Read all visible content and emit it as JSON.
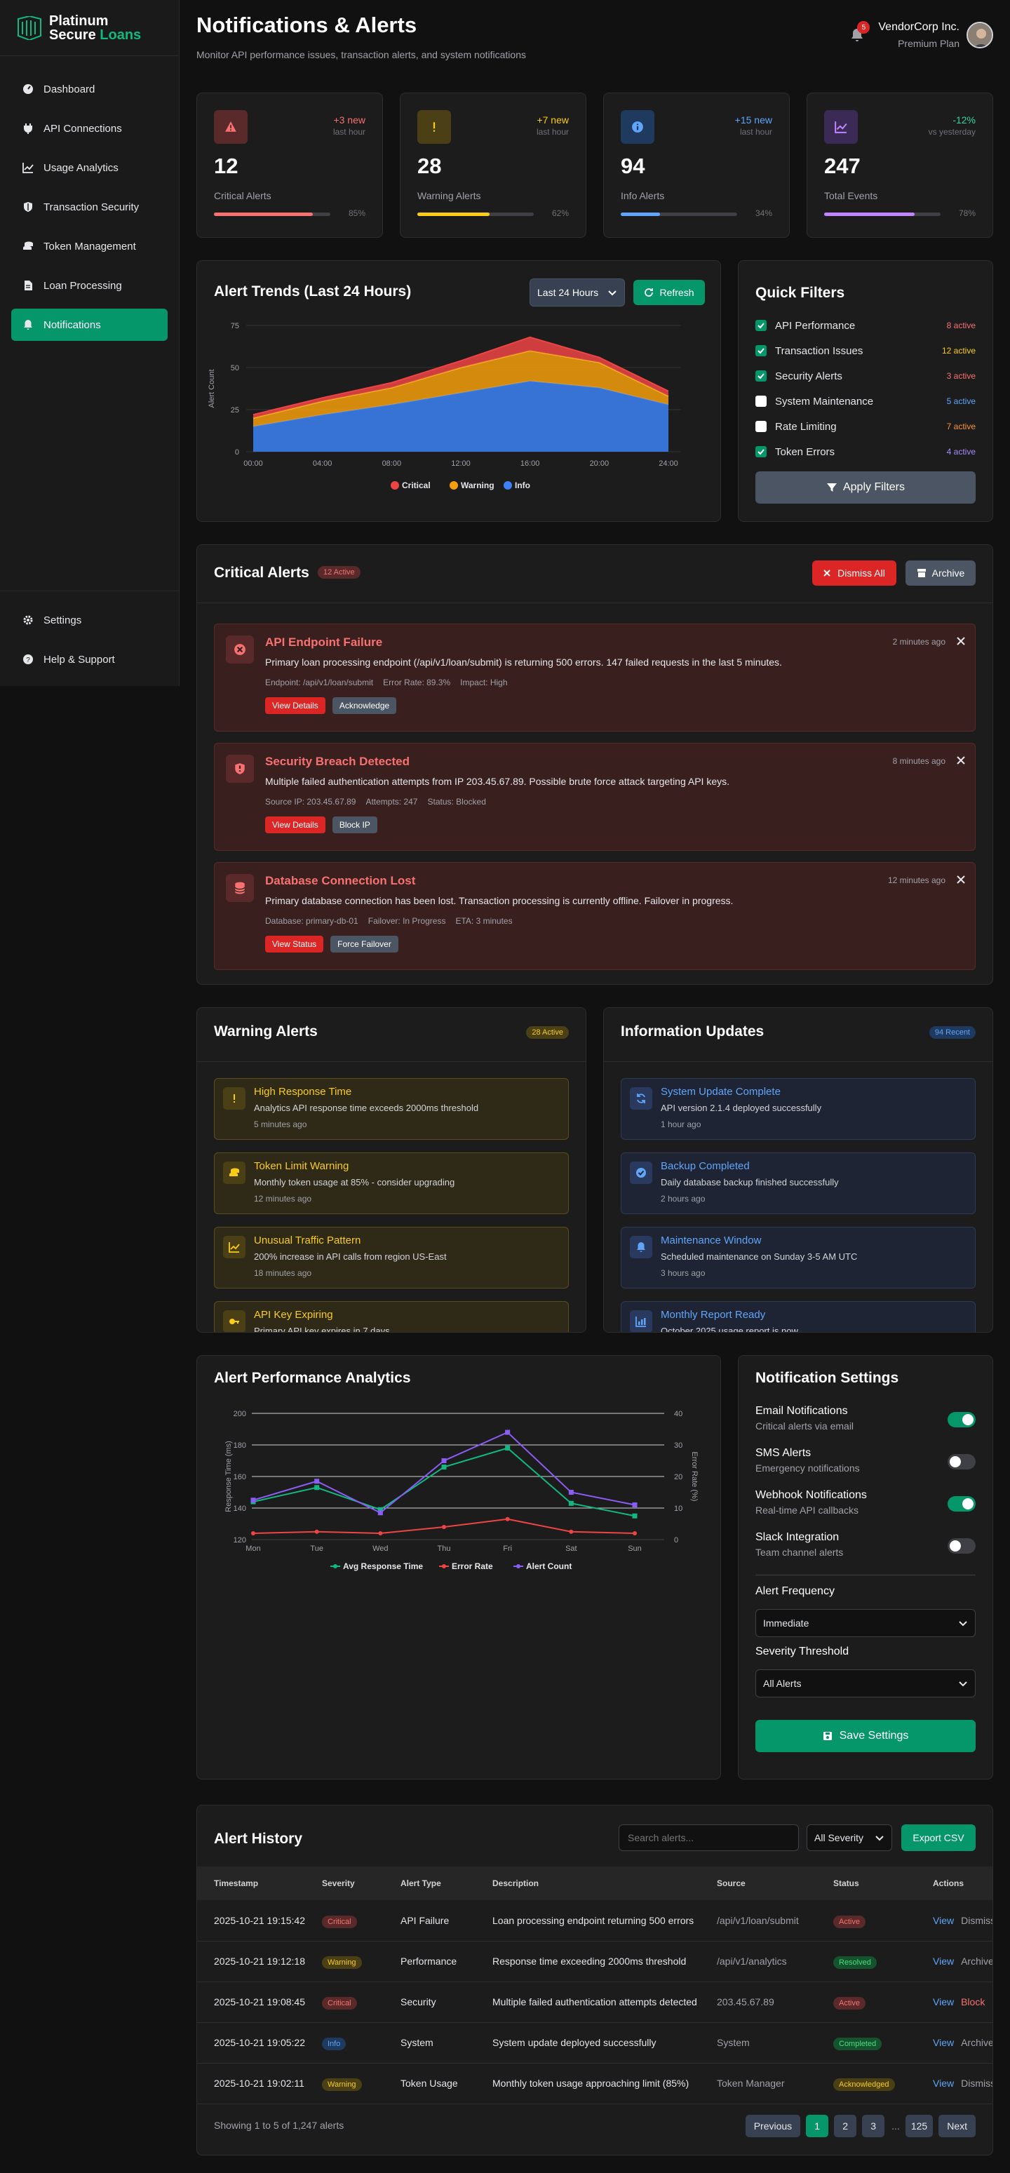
{
  "brand": {
    "line1": "Platinum",
    "line2a": "Secure",
    "line2b": "Loans"
  },
  "sidebar": {
    "items": [
      {
        "label": "Dashboard",
        "icon": "gauge-icon"
      },
      {
        "label": "API Connections",
        "icon": "plug-icon"
      },
      {
        "label": "Usage Analytics",
        "icon": "chart-line-icon"
      },
      {
        "label": "Transaction Security",
        "icon": "shield-icon"
      },
      {
        "label": "Token Management",
        "icon": "coins-icon"
      },
      {
        "label": "Loan Processing",
        "icon": "file-icon"
      },
      {
        "label": "Notifications",
        "icon": "bell-icon",
        "active": true
      }
    ],
    "bottom": [
      {
        "label": "Settings",
        "icon": "gear-icon"
      },
      {
        "label": "Help & Support",
        "icon": "question-icon"
      }
    ]
  },
  "header": {
    "title": "Notifications & Alerts",
    "subtitle": "Monitor API performance issues, transaction alerts, and system notifications",
    "bell_count": "5",
    "company": "VendorCorp Inc.",
    "plan": "Premium Plan"
  },
  "stats": [
    {
      "delta": "+3 new",
      "when": "last hour",
      "value": "12",
      "label": "Critical Alerts",
      "pct": "85%",
      "fraction": 0.85,
      "color": "#f87171",
      "icon_bg": "#5a2a2a",
      "bar": "#f87171"
    },
    {
      "delta": "+7 new",
      "when": "last hour",
      "value": "28",
      "label": "Warning Alerts",
      "pct": "62%",
      "fraction": 0.62,
      "color": "#facc15",
      "icon_bg": "#4a3f15",
      "bar": "#facc15"
    },
    {
      "delta": "+15 new",
      "when": "last hour",
      "value": "94",
      "label": "Info Alerts",
      "pct": "34%",
      "fraction": 0.34,
      "color": "#60a5fa",
      "icon_bg": "#1e3a5f",
      "bar": "#60a5fa"
    },
    {
      "delta": "-12%",
      "when": "vs yesterday",
      "value": "247",
      "label": "Total Events",
      "pct": "78%",
      "fraction": 0.78,
      "color": "#34d399",
      "icon_bg": "#3b2a55",
      "bar": "#c084fc"
    }
  ],
  "trends": {
    "title": "Alert Trends (Last 24 Hours)",
    "range": "Last 24 Hours",
    "refresh": "Refresh"
  },
  "quick_filters": {
    "title": "Quick Filters",
    "items": [
      {
        "label": "API Performance",
        "count": "8 active",
        "checked": true,
        "color": "#f87171"
      },
      {
        "label": "Transaction Issues",
        "count": "12 active",
        "checked": true,
        "color": "#facc15"
      },
      {
        "label": "Security Alerts",
        "count": "3 active",
        "checked": true,
        "color": "#f87171"
      },
      {
        "label": "System Maintenance",
        "count": "5 active",
        "checked": false,
        "color": "#60a5fa"
      },
      {
        "label": "Rate Limiting",
        "count": "7 active",
        "checked": false,
        "color": "#fb923c"
      },
      {
        "label": "Token Errors",
        "count": "4 active",
        "checked": true,
        "color": "#a78bfa"
      }
    ],
    "apply": "Apply Filters"
  },
  "critical": {
    "title": "Critical Alerts",
    "badge": "12 Active",
    "dismiss_all": "Dismiss All",
    "archive": "Archive",
    "items": [
      {
        "title": "API Endpoint Failure",
        "time": "2 minutes ago",
        "desc": "Primary loan processing endpoint (/api/v1/loan/submit) is returning 500 errors. 147 failed requests in the last 5 minutes.",
        "meta": [
          "Endpoint: /api/v1/loan/submit",
          "Error Rate: 89.3%",
          "Impact: High"
        ],
        "primary": "View Details",
        "secondary": "Acknowledge",
        "icon": "x-circle-icon"
      },
      {
        "title": "Security Breach Detected",
        "time": "8 minutes ago",
        "desc": "Multiple failed authentication attempts from IP 203.45.67.89. Possible brute force attack targeting API keys.",
        "meta": [
          "Source IP: 203.45.67.89",
          "Attempts: 247",
          "Status: Blocked"
        ],
        "primary": "View Details",
        "secondary": "Block IP",
        "icon": "shield-alert-icon"
      },
      {
        "title": "Database Connection Lost",
        "time": "12 minutes ago",
        "desc": "Primary database connection has been lost. Transaction processing is currently offline. Failover in progress.",
        "meta": [
          "Database: primary-db-01",
          "Failover: In Progress",
          "ETA: 3 minutes"
        ],
        "primary": "View Status",
        "secondary": "Force Failover",
        "icon": "database-icon"
      }
    ]
  },
  "warning": {
    "title": "Warning Alerts",
    "badge": "28 Active",
    "items": [
      {
        "title": "High Response Time",
        "desc": "Analytics API response time exceeds 2000ms threshold",
        "time": "5 minutes ago",
        "icon": "exclamation-icon"
      },
      {
        "title": "Token Limit Warning",
        "desc": "Monthly token usage at 85% - consider upgrading",
        "time": "12 minutes ago",
        "icon": "coins-icon"
      },
      {
        "title": "Unusual Traffic Pattern",
        "desc": "200% increase in API calls from region US-East",
        "time": "18 minutes ago",
        "icon": "chart-line-icon"
      },
      {
        "title": "API Key Expiring",
        "desc": "Primary API key expires in 7 days",
        "time": "",
        "icon": "key-icon"
      }
    ]
  },
  "info": {
    "title": "Information Updates",
    "badge": "94 Recent",
    "items": [
      {
        "title": "System Update Complete",
        "desc": "API version 2.1.4 deployed successfully",
        "time": "1 hour ago",
        "icon": "sync-icon"
      },
      {
        "title": "Backup Completed",
        "desc": "Daily database backup finished successfully",
        "time": "2 hours ago",
        "icon": "check-circle-icon"
      },
      {
        "title": "Maintenance Window",
        "desc": "Scheduled maintenance on Sunday 3-5 AM UTC",
        "time": "3 hours ago",
        "icon": "bell-icon"
      },
      {
        "title": "Monthly Report Ready",
        "desc": "October 2025 usage report is now",
        "time": "",
        "icon": "chart-bar-icon"
      }
    ]
  },
  "analytics": {
    "title": "Alert Performance Analytics"
  },
  "settings": {
    "title": "Notification Settings",
    "toggles": [
      {
        "name": "Email Notifications",
        "desc": "Critical alerts via email",
        "on": true
      },
      {
        "name": "SMS Alerts",
        "desc": "Emergency notifications",
        "on": false
      },
      {
        "name": "Webhook Notifications",
        "desc": "Real-time API callbacks",
        "on": true
      },
      {
        "name": "Slack Integration",
        "desc": "Team channel alerts",
        "on": false
      }
    ],
    "freq_label": "Alert Frequency",
    "freq_value": "Immediate",
    "sev_label": "Severity Threshold",
    "sev_value": "All Alerts",
    "save": "Save Settings"
  },
  "history": {
    "title": "Alert History",
    "search_placeholder": "Search alerts...",
    "severity_filter": "All Severity",
    "export": "Export CSV",
    "columns": [
      "Timestamp",
      "Severity",
      "Alert Type",
      "Description",
      "Source",
      "Status",
      "Actions"
    ],
    "rows": [
      {
        "ts": "2025-10-21 19:15:42",
        "sev": "Critical",
        "type": "API Failure",
        "desc": "Loan processing endpoint returning 500 errors",
        "src": "/api/v1/loan/submit",
        "status": "Active",
        "a1": "View",
        "a2": "Dismiss"
      },
      {
        "ts": "2025-10-21 19:12:18",
        "sev": "Warning",
        "type": "Performance",
        "desc": "Response time exceeding 2000ms threshold",
        "src": "/api/v1/analytics",
        "status": "Resolved",
        "a1": "View",
        "a2": "Archive"
      },
      {
        "ts": "2025-10-21 19:08:45",
        "sev": "Critical",
        "type": "Security",
        "desc": "Multiple failed authentication attempts detected",
        "src": "203.45.67.89",
        "status": "Active",
        "a1": "View",
        "a2": "Block"
      },
      {
        "ts": "2025-10-21 19:05:22",
        "sev": "Info",
        "type": "System",
        "desc": "System update deployed successfully",
        "src": "System",
        "status": "Completed",
        "a1": "View",
        "a2": "Archive"
      },
      {
        "ts": "2025-10-21 19:02:11",
        "sev": "Warning",
        "type": "Token Usage",
        "desc": "Monthly token usage approaching limit (85%)",
        "src": "Token Manager",
        "status": "Acknowledged",
        "a1": "View",
        "a2": "Dismiss"
      }
    ],
    "showing": "Showing 1 to 5 of 1,247 alerts",
    "pagination": {
      "prev": "Previous",
      "pages": [
        "1",
        "2",
        "3"
      ],
      "ellipsis": "...",
      "last": "125",
      "next": "Next"
    }
  },
  "chart_data": [
    {
      "type": "area",
      "x": [
        "00:00",
        "04:00",
        "08:00",
        "12:00",
        "16:00",
        "20:00",
        "24:00"
      ],
      "series": [
        {
          "name": "Info",
          "values": [
            15,
            22,
            28,
            35,
            42,
            38,
            28
          ],
          "color": "#3b82f6"
        },
        {
          "name": "Warning",
          "values": [
            5,
            8,
            10,
            15,
            18,
            15,
            5
          ],
          "color": "#f59e0b"
        },
        {
          "name": "Critical",
          "values": [
            2,
            2,
            3,
            4,
            8,
            3,
            3
          ],
          "color": "#ef4444"
        }
      ],
      "stacked": true,
      "ylabel": "Alert Count",
      "ylim": [
        0,
        75
      ],
      "yticks": [
        0,
        25,
        50,
        75
      ],
      "legend": [
        "Critical",
        "Warning",
        "Info"
      ],
      "legend_position": "bottom"
    },
    {
      "type": "line",
      "x": [
        "Mon",
        "Tue",
        "Wed",
        "Thu",
        "Fri",
        "Sat",
        "Sun"
      ],
      "series": [
        {
          "name": "Avg Response Time",
          "axis": "left",
          "values": [
            144,
            153,
            139,
            166,
            178,
            143,
            135
          ],
          "color": "#10b981"
        },
        {
          "name": "Error Rate",
          "axis": "right",
          "values": [
            2,
            2.5,
            2,
            4,
            6.5,
            2.5,
            2
          ],
          "color": "#ef4444"
        },
        {
          "name": "Alert Count",
          "axis": "left",
          "values": [
            145,
            157,
            137,
            170,
            188,
            150,
            142
          ],
          "color": "#8b5cf6"
        }
      ],
      "ylabel": "Response Time (ms)",
      "y2label": "Error Rate (%)",
      "ylim": [
        120,
        200
      ],
      "yticks": [
        120,
        140,
        160,
        180,
        200
      ],
      "y2lim": [
        0,
        40
      ],
      "y2ticks": [
        0,
        10,
        20,
        30,
        40
      ],
      "legend_position": "bottom"
    }
  ]
}
